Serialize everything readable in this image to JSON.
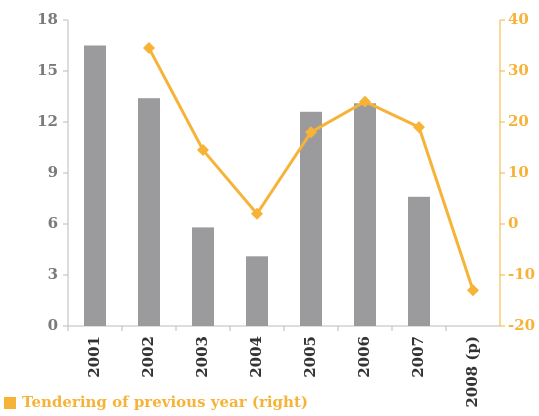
{
  "chart_data": {
    "type": "bar",
    "categories": [
      "2001",
      "2002",
      "2003",
      "2004",
      "2005",
      "2006",
      "2007",
      "2008 (p)"
    ],
    "series": [
      {
        "type": "bar",
        "color": "#9b9b9d",
        "values": [
          16.5,
          13.4,
          5.8,
          4.1,
          12.6,
          13.1,
          7.6,
          null
        ]
      },
      {
        "type": "line",
        "name": "Tendering of previous year (right)",
        "color": "#f6b338",
        "axis": "y2",
        "values": [
          null,
          34.5,
          14.5,
          2,
          18,
          24,
          19,
          -13
        ]
      }
    ],
    "ylim": [
      0,
      18
    ],
    "yticks": [
      0,
      3,
      6,
      9,
      12,
      15,
      18
    ],
    "y2lim": [
      -20,
      40
    ],
    "y2ticks": [
      -20,
      -10,
      0,
      10,
      20,
      30,
      40
    ],
    "legend": "bottom-left"
  }
}
